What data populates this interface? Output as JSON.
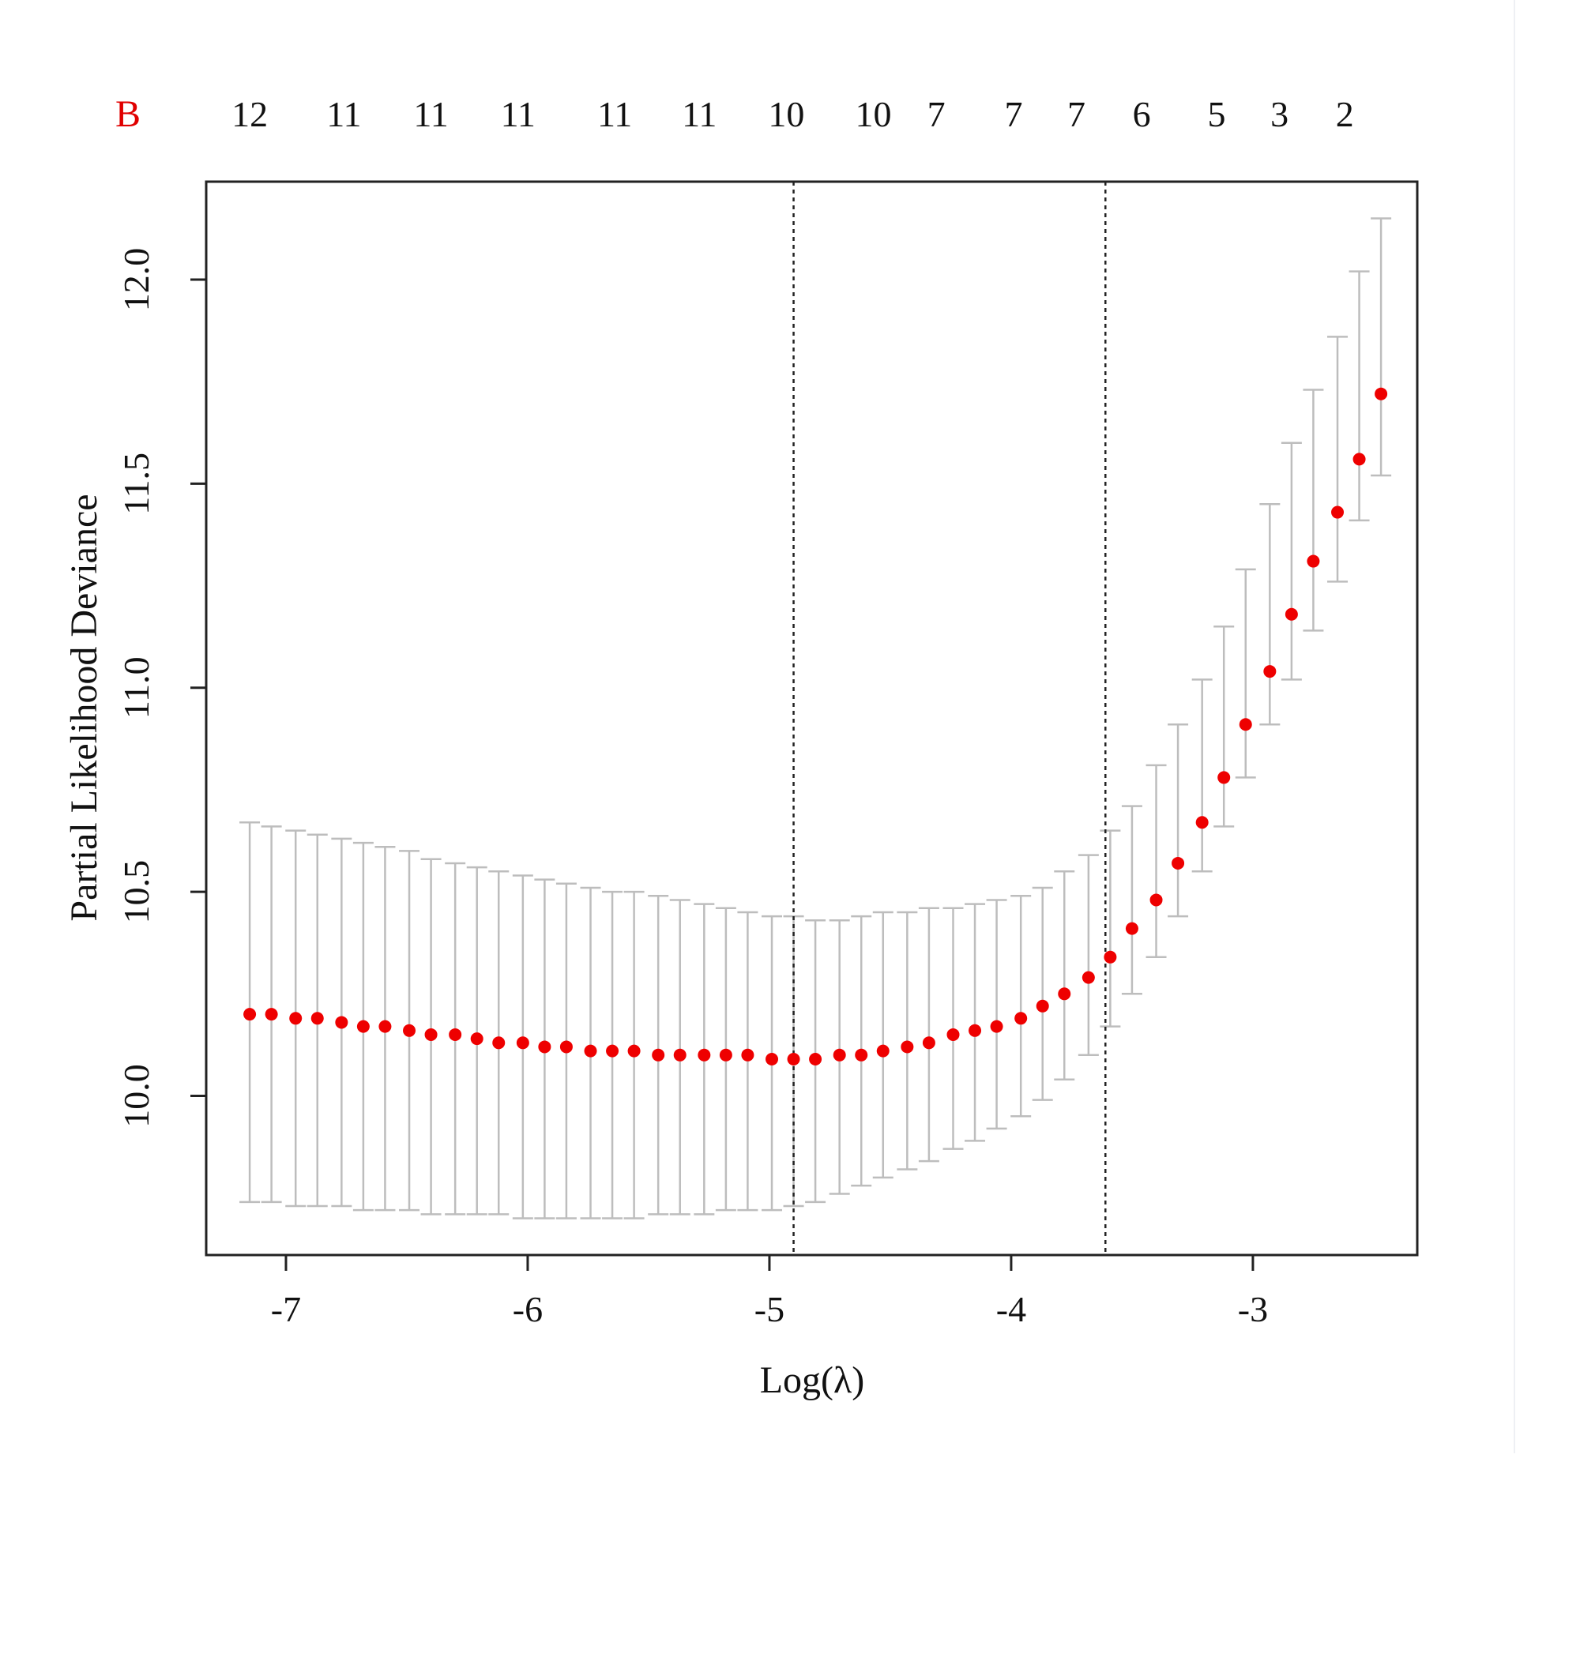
{
  "chart_data": {
    "type": "scatter",
    "panel_label": "B",
    "xlabel": "Log(λ)",
    "ylabel": "Partial Likelihood Deviance",
    "xlim": [
      -7.33,
      -2.32
    ],
    "ylim": [
      9.61,
      12.24
    ],
    "x_ticks": [
      -7,
      -6,
      -5,
      -4,
      -3
    ],
    "x_tick_labels": [
      "-7",
      "-6",
      "-5",
      "-4",
      "-3"
    ],
    "y_ticks": [
      10.0,
      10.5,
      11.0,
      11.5,
      12.0
    ],
    "y_tick_labels": [
      "10.0",
      "10.5",
      "11.0",
      "11.5",
      "12.0"
    ],
    "top_counts": [
      {
        "x": -7.15,
        "label": "12"
      },
      {
        "x": -6.76,
        "label": "11"
      },
      {
        "x": -6.4,
        "label": "11"
      },
      {
        "x": -6.04,
        "label": "11"
      },
      {
        "x": -5.64,
        "label": "11"
      },
      {
        "x": -5.29,
        "label": "11"
      },
      {
        "x": -4.93,
        "label": "10"
      },
      {
        "x": -4.57,
        "label": "10"
      },
      {
        "x": -4.31,
        "label": "7"
      },
      {
        "x": -3.99,
        "label": "7"
      },
      {
        "x": -3.73,
        "label": "7"
      },
      {
        "x": -3.46,
        "label": "6"
      },
      {
        "x": -3.15,
        "label": "5"
      },
      {
        "x": -2.89,
        "label": "3"
      },
      {
        "x": -2.62,
        "label": "2"
      }
    ],
    "vlines": [
      -4.9,
      -3.61
    ],
    "series": [
      {
        "x": [
          -7.15,
          -7.06,
          -6.96,
          -6.87,
          -6.77,
          -6.68,
          -6.59,
          -6.49,
          -6.4,
          -6.3,
          -6.21,
          -6.12,
          -6.02,
          -5.93,
          -5.84,
          -5.74,
          -5.65,
          -5.56,
          -5.46,
          -5.37,
          -5.27,
          -5.18,
          -5.09,
          -4.99,
          -4.9,
          -4.81,
          -4.71,
          -4.62,
          -4.53,
          -4.43,
          -4.34,
          -4.24,
          -4.15,
          -4.06,
          -3.96,
          -3.87,
          -3.78,
          -3.68,
          -3.59,
          -3.5,
          -3.4,
          -3.31,
          -3.21,
          -3.12,
          -3.03,
          -2.93,
          -2.84,
          -2.75,
          -2.65,
          -2.56,
          -2.47
        ],
        "y": [
          10.2,
          10.2,
          10.19,
          10.19,
          10.18,
          10.17,
          10.17,
          10.16,
          10.15,
          10.15,
          10.14,
          10.13,
          10.13,
          10.12,
          10.12,
          10.11,
          10.11,
          10.11,
          10.1,
          10.1,
          10.1,
          10.1,
          10.1,
          10.09,
          10.09,
          10.09,
          10.1,
          10.1,
          10.11,
          10.12,
          10.13,
          10.15,
          10.16,
          10.17,
          10.19,
          10.22,
          10.25,
          10.29,
          10.34,
          10.41,
          10.48,
          10.57,
          10.67,
          10.78,
          10.91,
          11.04,
          11.18,
          11.31,
          11.43,
          11.56,
          11.72
        ],
        "upper": [
          10.67,
          10.66,
          10.65,
          10.64,
          10.63,
          10.62,
          10.61,
          10.6,
          10.58,
          10.57,
          10.56,
          10.55,
          10.54,
          10.53,
          10.52,
          10.51,
          10.5,
          10.5,
          10.49,
          10.48,
          10.47,
          10.46,
          10.45,
          10.44,
          10.44,
          10.43,
          10.43,
          10.44,
          10.45,
          10.45,
          10.46,
          10.46,
          10.47,
          10.48,
          10.49,
          10.51,
          10.55,
          10.59,
          10.65,
          10.71,
          10.81,
          10.91,
          11.02,
          11.15,
          11.29,
          11.45,
          11.6,
          11.73,
          11.86,
          12.02,
          12.15
        ],
        "lower": [
          9.74,
          9.74,
          9.73,
          9.73,
          9.73,
          9.72,
          9.72,
          9.72,
          9.71,
          9.71,
          9.71,
          9.71,
          9.7,
          9.7,
          9.7,
          9.7,
          9.7,
          9.7,
          9.71,
          9.71,
          9.71,
          9.72,
          9.72,
          9.72,
          9.73,
          9.74,
          9.76,
          9.78,
          9.8,
          9.82,
          9.84,
          9.87,
          9.89,
          9.92,
          9.95,
          9.99,
          10.04,
          10.1,
          10.17,
          10.25,
          10.34,
          10.44,
          10.55,
          10.66,
          10.78,
          10.91,
          11.02,
          11.14,
          11.26,
          11.41,
          11.52
        ]
      }
    ]
  },
  "colors": {
    "points": "#ee0000",
    "errorbars": "#bdbdbd",
    "frame": "#222222",
    "vlines": "#222222",
    "panel_letter": "#e00000"
  }
}
